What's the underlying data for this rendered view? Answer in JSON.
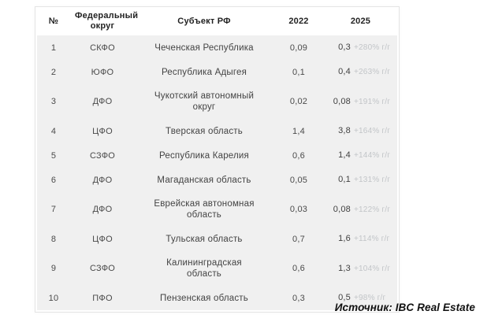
{
  "chart_data": {
    "type": "table",
    "columns": [
      "№",
      "Федеральный округ",
      "Субъект РФ",
      "2022",
      "2025"
    ],
    "rows": [
      {
        "num": "1",
        "district": "СКФО",
        "subject": "Чеченская Республика",
        "y2022": "0,09",
        "y2025": "0,3",
        "growth": "+280% г/г"
      },
      {
        "num": "2",
        "district": "ЮФО",
        "subject": "Республика Адыгея",
        "y2022": "0,1",
        "y2025": "0,4",
        "growth": "+263% г/г"
      },
      {
        "num": "3",
        "district": "ДФО",
        "subject": "Чукотский автономный округ",
        "y2022": "0,02",
        "y2025": "0,08",
        "growth": "+191% г/г"
      },
      {
        "num": "4",
        "district": "ЦФО",
        "subject": "Тверская область",
        "y2022": "1,4",
        "y2025": "3,8",
        "growth": "+164% г/г"
      },
      {
        "num": "5",
        "district": "СЗФО",
        "subject": "Республика Карелия",
        "y2022": "0,6",
        "y2025": "1,4",
        "growth": "+144% г/г"
      },
      {
        "num": "6",
        "district": "ДФО",
        "subject": "Магаданская область",
        "y2022": "0,05",
        "y2025": "0,1",
        "growth": "+131% г/г"
      },
      {
        "num": "7",
        "district": "ДФО",
        "subject": "Еврейская автономная область",
        "y2022": "0,03",
        "y2025": "0,08",
        "growth": "+122% г/г"
      },
      {
        "num": "8",
        "district": "ЦФО",
        "subject": "Тульская область",
        "y2022": "0,7",
        "y2025": "1,6",
        "growth": "+114% г/г"
      },
      {
        "num": "9",
        "district": "СЗФО",
        "subject": "Калининградская область",
        "y2022": "0,6",
        "y2025": "1,3",
        "growth": "+104% г/г"
      },
      {
        "num": "10",
        "district": "ПФО",
        "subject": "Пензенская область",
        "y2022": "0,3",
        "y2025": "0,5",
        "growth": "+98% г/г"
      }
    ],
    "source": "Источник: IBC Real Estate"
  },
  "colors": {
    "row_background": "#f0f0f0",
    "table_border": "#e4e4e4",
    "header_text": "#222222",
    "body_text": "#4a4a4a",
    "growth_text": "#c2c5c8",
    "source_text": "#111111"
  }
}
